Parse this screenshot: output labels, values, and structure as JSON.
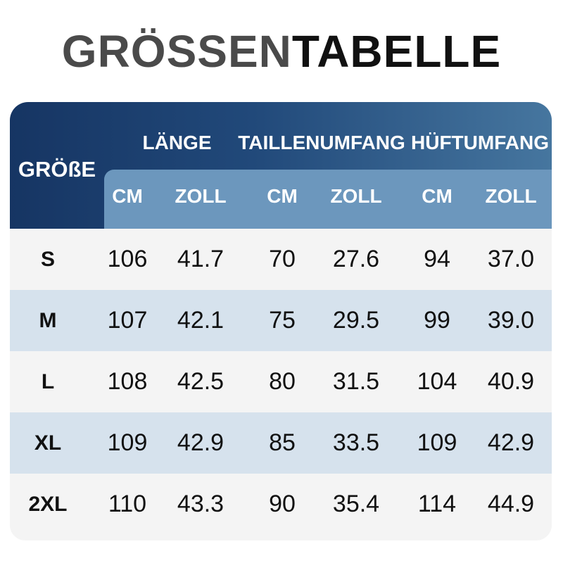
{
  "title": {
    "part1": "GRÖSSEN",
    "part2": "TABELLE"
  },
  "header": {
    "size": "GRÖßE",
    "groups": [
      "LÄNGE",
      "TAILLENUMFANG",
      "HÜFTUMFANG"
    ],
    "units": [
      "CM",
      "ZOLL",
      "CM",
      "ZOLL",
      "CM",
      "ZOLL"
    ]
  },
  "colors": {
    "header_dark": "#163563",
    "subheader": "#6c97bd",
    "row_light": "#f4f4f4",
    "row_blue": "#d6e2ed"
  },
  "rows": [
    [
      "S",
      "106",
      "41.7",
      "70",
      "27.6",
      "94",
      "37.0"
    ],
    [
      "M",
      "107",
      "42.1",
      "75",
      "29.5",
      "99",
      "39.0"
    ],
    [
      "L",
      "108",
      "42.5",
      "80",
      "31.5",
      "104",
      "40.9"
    ],
    [
      "XL",
      "109",
      "42.9",
      "85",
      "33.5",
      "109",
      "42.9"
    ],
    [
      "2XL",
      "110",
      "43.3",
      "90",
      "35.4",
      "114",
      "44.9"
    ]
  ]
}
